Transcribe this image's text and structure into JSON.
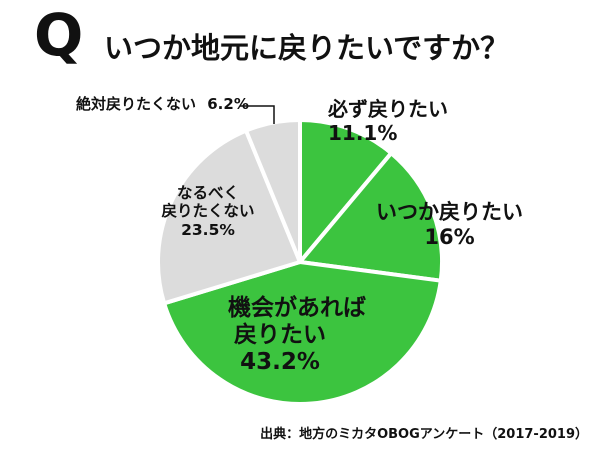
{
  "question": {
    "mark": "Q",
    "text": "いつか地元に戻りたいですか？"
  },
  "chart_data": {
    "type": "pie",
    "title": "いつか地元に戻りたいですか？",
    "slices": [
      {
        "label_lines": [
          "必ず戻りたい"
        ],
        "value_text": "11.1%",
        "value": 11.1,
        "color": "#3cc43f"
      },
      {
        "label_lines": [
          "いつか戻りたい"
        ],
        "value_text": "16%",
        "value": 16.0,
        "color": "#3cc43f"
      },
      {
        "label_lines": [
          "機会があれば",
          "戻りたい"
        ],
        "value_text": "43.2%",
        "value": 43.2,
        "color": "#3cc43f"
      },
      {
        "label_lines": [
          "なるべく",
          "戻りたくない"
        ],
        "value_text": "23.5%",
        "value": 23.5,
        "color": "#dcdcdc"
      },
      {
        "label_lines": [
          "絶対戻りたくない"
        ],
        "value_text": "6.2%",
        "value": 6.2,
        "color": "#dcdcdc"
      }
    ],
    "start": "12 o'clock",
    "direction": "clockwise",
    "separator_color": "#ffffff"
  },
  "source": "出典：地方のミカタOBOGアンケート（2017-2019）"
}
